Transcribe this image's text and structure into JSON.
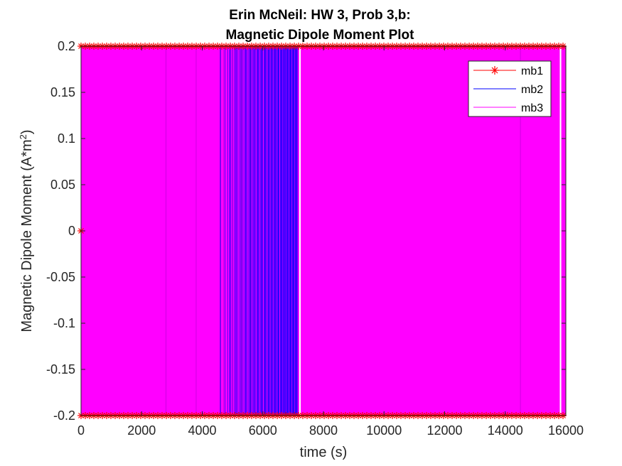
{
  "chart_data": {
    "type": "line",
    "title": [
      "Erin McNeil: HW 3, Prob 3,b:",
      "Magnetic Dipole Moment Plot"
    ],
    "xlabel": "time (s)",
    "ylabel": "Magnetic Dipole Moment (A*m",
    "ylabel_sup": "2",
    "ylabel_tail": ")",
    "xlim": [
      0,
      16000
    ],
    "ylim": [
      -0.2,
      0.2
    ],
    "x_ticks": [
      0,
      2000,
      4000,
      6000,
      8000,
      10000,
      12000,
      14000,
      16000
    ],
    "x_tick_labels": [
      "0",
      "2000",
      "4000",
      "6000",
      "8000",
      "10000",
      "12000",
      "14000",
      "16000"
    ],
    "y_ticks": [
      0.2,
      0.15,
      0.1,
      0.05,
      0,
      -0.05,
      -0.1,
      -0.15,
      -0.2
    ],
    "y_tick_labels": [
      "0.2",
      "0.15",
      "0.1",
      "0.05",
      "0",
      "-0.05",
      "-0.1",
      "-0.15",
      "-0.2"
    ],
    "grid": false,
    "legend_position": "top-right",
    "series": [
      {
        "name": "mb1",
        "color": "#ff0000",
        "marker": "asterisk",
        "style": "square-wave",
        "amplitude": 0.2,
        "x_range": [
          0,
          16000
        ]
      },
      {
        "name": "mb2",
        "color": "#0000ff",
        "marker": "none",
        "style": "square-wave",
        "amplitude": 0.2,
        "x_range": [
          0,
          16000
        ]
      },
      {
        "name": "mb3",
        "color": "#ff00ff",
        "marker": "none",
        "style": "square-wave",
        "amplitude": 0.2,
        "x_range": [
          0,
          16000
        ]
      }
    ],
    "visible_gaps": [
      [
        7200,
        7250
      ],
      [
        15800,
        15850
      ]
    ],
    "blue_dense_region": [
      4600,
      7150
    ]
  }
}
